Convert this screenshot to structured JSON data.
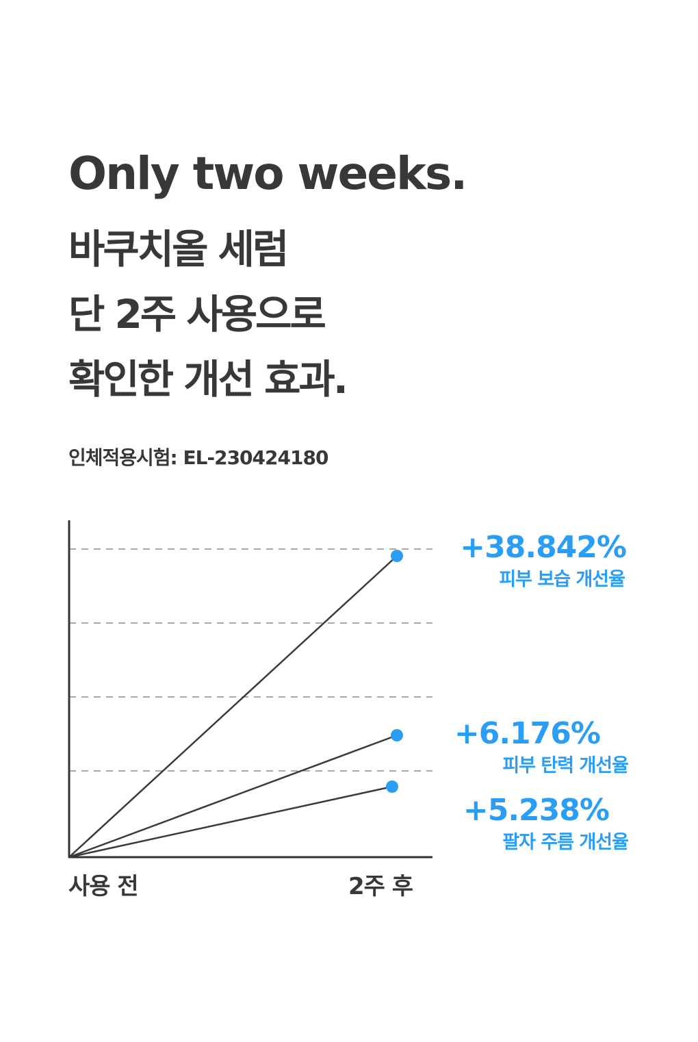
{
  "header": {
    "title": "Only two weeks.",
    "lines": [
      "바쿠치올 세럼",
      "단 2주 사용으로",
      "확인한 개선 효과."
    ],
    "subtitle": "인체적용시험: EL-230424180"
  },
  "chart": {
    "x_labels": [
      "사용 전",
      "2주 후"
    ],
    "items": [
      {
        "value": "+38.842%",
        "label": "피부 보습 개선율"
      },
      {
        "value": "+6.176%",
        "label": "피부 탄력 개선율"
      },
      {
        "value": "+5.238%",
        "label": "팔자 주름 개선율"
      }
    ]
  }
}
